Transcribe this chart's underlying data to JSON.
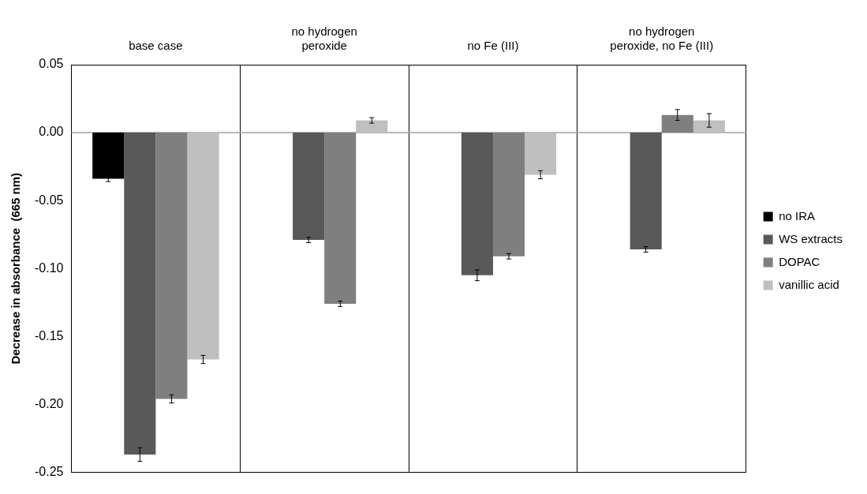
{
  "chart_data": {
    "type": "bar",
    "ylabel": "Decrease in absorbance  (665 nm)",
    "categories": [
      "base case",
      "no hydrogen peroxide",
      "no Fe (III)",
      "no hydrogen peroxide, no Fe (III)"
    ],
    "series": [
      {
        "name": "no IRA",
        "color": "#000000",
        "values": [
          -0.034,
          null,
          null,
          null
        ],
        "errors": [
          0.002,
          null,
          null,
          null
        ]
      },
      {
        "name": "WS extracts",
        "color": "#595959",
        "values": [
          -0.237,
          -0.079,
          -0.105,
          -0.086
        ],
        "errors": [
          0.005,
          0.002,
          0.004,
          0.002
        ]
      },
      {
        "name": "DOPAC",
        "color": "#7f7f7f",
        "values": [
          -0.196,
          -0.126,
          -0.091,
          0.013
        ],
        "errors": [
          0.003,
          0.002,
          0.002,
          0.004
        ]
      },
      {
        "name": "vanillic acid",
        "color": "#bfbfbf",
        "values": [
          -0.167,
          0.009,
          -0.031,
          0.009
        ],
        "errors": [
          0.003,
          0.002,
          0.003,
          0.005
        ]
      }
    ],
    "ylim": [
      -0.25,
      0.05
    ],
    "yticks": [
      {
        "value": -0.25,
        "label": "-0.25"
      },
      {
        "value": -0.2,
        "label": "-0.20"
      },
      {
        "value": -0.15,
        "label": "-0.15"
      },
      {
        "value": -0.1,
        "label": "-0.10"
      },
      {
        "value": -0.05,
        "label": "-0.05"
      },
      {
        "value": 0,
        "label": "0.00"
      },
      {
        "value": 0.05,
        "label": "0.05"
      }
    ],
    "grid": "x",
    "legend": "right"
  }
}
